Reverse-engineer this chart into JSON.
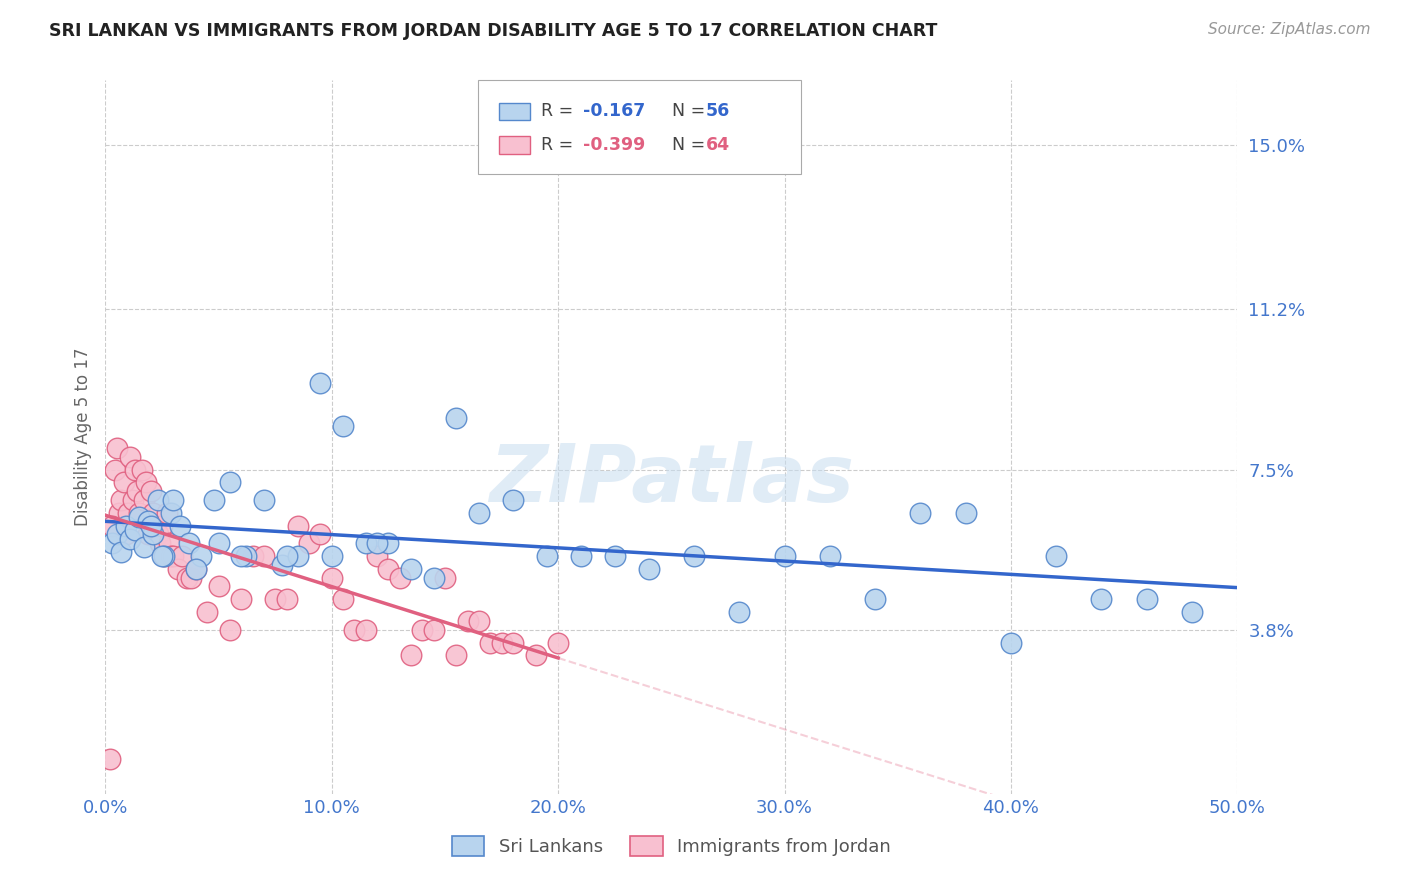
{
  "title": "SRI LANKAN VS IMMIGRANTS FROM JORDAN DISABILITY AGE 5 TO 17 CORRELATION CHART",
  "source": "Source: ZipAtlas.com",
  "xlabel_vals": [
    0.0,
    10.0,
    20.0,
    30.0,
    40.0,
    50.0
  ],
  "ylabel": "Disability Age 5 to 17",
  "ytick_vals": [
    3.8,
    7.5,
    11.2,
    15.0
  ],
  "xlim": [
    0.0,
    50.0
  ],
  "ylim": [
    0.0,
    16.5
  ],
  "watermark": "ZIPatlas",
  "sri_lankans": {
    "color": "#b8d4ee",
    "edge_color": "#5588cc",
    "R": -0.167,
    "N": 56,
    "line_color": "#3366cc",
    "x": [
      0.3,
      0.5,
      0.7,
      0.9,
      1.1,
      1.3,
      1.5,
      1.7,
      1.9,
      2.1,
      2.3,
      2.6,
      2.9,
      3.3,
      3.7,
      4.2,
      4.8,
      5.5,
      6.2,
      7.0,
      7.8,
      8.5,
      9.5,
      10.5,
      11.5,
      12.5,
      13.5,
      14.5,
      15.5,
      16.5,
      18.0,
      19.5,
      21.0,
      22.5,
      24.0,
      26.0,
      28.0,
      30.0,
      32.0,
      34.0,
      36.0,
      38.0,
      40.0,
      42.0,
      44.0,
      46.0,
      48.0,
      2.0,
      2.5,
      3.0,
      4.0,
      5.0,
      6.0,
      8.0,
      10.0,
      12.0
    ],
    "y": [
      5.8,
      6.0,
      5.6,
      6.2,
      5.9,
      6.1,
      6.4,
      5.7,
      6.3,
      6.0,
      6.8,
      5.5,
      6.5,
      6.2,
      5.8,
      5.5,
      6.8,
      7.2,
      5.5,
      6.8,
      5.3,
      5.5,
      9.5,
      8.5,
      5.8,
      5.8,
      5.2,
      5.0,
      8.7,
      6.5,
      6.8,
      5.5,
      5.5,
      5.5,
      5.2,
      5.5,
      4.2,
      5.5,
      5.5,
      4.5,
      6.5,
      6.5,
      3.5,
      5.5,
      4.5,
      4.5,
      4.2,
      6.2,
      5.5,
      6.8,
      5.2,
      5.8,
      5.5,
      5.5,
      5.5,
      5.8
    ]
  },
  "jordan": {
    "color": "#f8c0d0",
    "edge_color": "#e06080",
    "R": -0.399,
    "N": 64,
    "line_color": "#e06080",
    "line_solid_end": 20.0,
    "x": [
      0.2,
      0.4,
      0.5,
      0.6,
      0.7,
      0.8,
      0.9,
      1.0,
      1.1,
      1.2,
      1.3,
      1.4,
      1.5,
      1.6,
      1.7,
      1.8,
      1.9,
      2.0,
      2.1,
      2.2,
      2.3,
      2.4,
      2.5,
      2.6,
      2.7,
      2.8,
      2.9,
      3.0,
      3.2,
      3.4,
      3.6,
      3.8,
      4.0,
      4.5,
      5.0,
      5.5,
      6.0,
      6.5,
      7.0,
      7.5,
      8.0,
      8.5,
      9.0,
      9.5,
      10.0,
      10.5,
      11.0,
      11.5,
      12.0,
      12.5,
      13.0,
      13.5,
      14.0,
      14.5,
      15.0,
      15.5,
      16.0,
      16.5,
      17.0,
      17.5,
      18.0,
      19.0,
      20.0,
      0.3
    ],
    "y": [
      0.8,
      7.5,
      8.0,
      6.5,
      6.8,
      7.2,
      6.0,
      6.5,
      7.8,
      6.8,
      7.5,
      7.0,
      6.5,
      7.5,
      6.8,
      7.2,
      6.0,
      7.0,
      6.5,
      6.2,
      6.0,
      5.8,
      6.2,
      5.5,
      6.5,
      5.8,
      5.5,
      5.5,
      5.2,
      5.5,
      5.0,
      5.0,
      5.2,
      4.2,
      4.8,
      3.8,
      4.5,
      5.5,
      5.5,
      4.5,
      4.5,
      6.2,
      5.8,
      6.0,
      5.0,
      4.5,
      3.8,
      3.8,
      5.5,
      5.2,
      5.0,
      3.2,
      3.8,
      3.8,
      5.0,
      3.2,
      4.0,
      4.0,
      3.5,
      3.5,
      3.5,
      3.2,
      3.5,
      6.2
    ]
  },
  "legend_items": [
    {
      "label": "Sri Lankans",
      "color": "#b8d4ee",
      "edge_color": "#5588cc"
    },
    {
      "label": "Immigrants from Jordan",
      "color": "#f8c0d0",
      "edge_color": "#e06080"
    }
  ],
  "title_color": "#222222",
  "source_color": "#999999",
  "tick_label_color": "#4477cc",
  "grid_color": "#cccccc",
  "background_color": "#ffffff"
}
